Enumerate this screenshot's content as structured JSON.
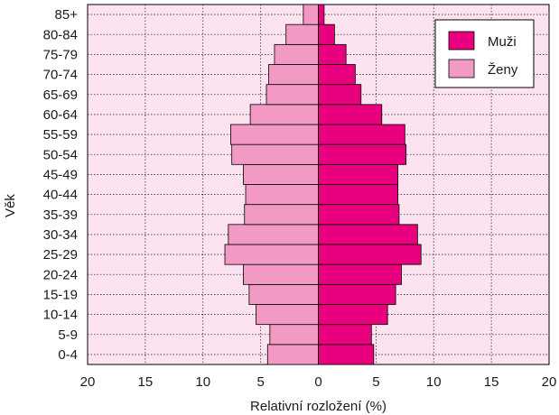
{
  "chart_data": {
    "type": "bar",
    "orientation": "horizontal-population-pyramid",
    "categories": [
      "0-4",
      "5-9",
      "10-14",
      "15-19",
      "20-24",
      "25-29",
      "30-34",
      "35-39",
      "40-44",
      "45-49",
      "50-54",
      "55-59",
      "60-64",
      "65-69",
      "70-74",
      "75-79",
      "80-84",
      "85+"
    ],
    "series": [
      {
        "name": "Muži",
        "values": [
          4.8,
          4.6,
          6.0,
          6.7,
          7.2,
          8.9,
          8.6,
          7.0,
          6.9,
          6.9,
          7.6,
          7.5,
          5.5,
          3.7,
          3.2,
          2.4,
          1.4,
          0.5
        ],
        "color": "#e8007f"
      },
      {
        "name": "Ženy",
        "values": [
          4.4,
          4.2,
          5.4,
          6.0,
          6.5,
          8.1,
          7.8,
          6.4,
          6.3,
          6.5,
          7.5,
          7.6,
          5.9,
          4.5,
          4.3,
          3.8,
          2.8,
          1.3
        ],
        "color": "#f39ac4"
      }
    ],
    "xticks": [
      "20",
      "15",
      "10",
      "5",
      "0",
      "5",
      "10",
      "15",
      "20"
    ],
    "xlim": [
      -20,
      20
    ],
    "xlabel": "Relativní rozložení (%)",
    "ylabel": "Věk",
    "title": "",
    "grid": true,
    "legend_position": "top-right",
    "background_color": "#fce3ef"
  }
}
